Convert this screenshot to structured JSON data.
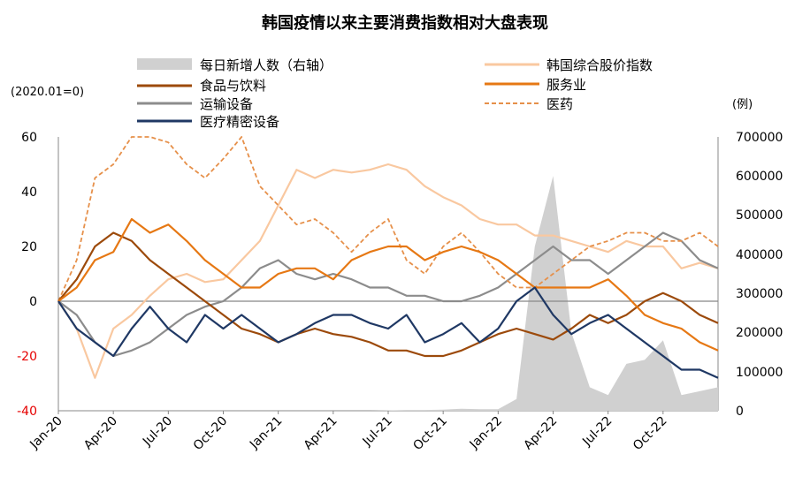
{
  "chart_data": {
    "type": "line",
    "title": "韩国疫情以来主要消费指数相对大盘表现",
    "left_unit": "(2020.01=0)",
    "right_unit": "(例)",
    "x_ticks": [
      "Jan-20",
      "Apr-20",
      "Jul-20",
      "Oct-20",
      "Jan-21",
      "Apr-21",
      "Jul-21",
      "Oct-21",
      "Jan-22",
      "Apr-22",
      "Jul-22",
      "Oct-22"
    ],
    "y_left": {
      "min": -40,
      "max": 60,
      "ticks": [
        "60",
        "40",
        "20",
        "0",
        "-20",
        "-40"
      ]
    },
    "y_right": {
      "min": 0,
      "max": 700000,
      "ticks": [
        "700000",
        "600000",
        "500000",
        "400000",
        "300000",
        "200000",
        "100000",
        "0"
      ]
    },
    "legend": [
      {
        "id": "cases",
        "label": "每日新增人数（右轴）",
        "color": "#d0d0d0",
        "style": "area"
      },
      {
        "id": "kospi",
        "label": "韩国综合股价指数",
        "color": "#f9c8a0",
        "style": "solid"
      },
      {
        "id": "food",
        "label": "食品与饮料",
        "color": "#9c4a0b",
        "style": "solid"
      },
      {
        "id": "service",
        "label": "服务业",
        "color": "#e67814",
        "style": "solid"
      },
      {
        "id": "transport",
        "label": "运输设备",
        "color": "#8c8c8c",
        "style": "solid"
      },
      {
        "id": "medicine",
        "label": "医药",
        "color": "#e6904a",
        "style": "dashed"
      },
      {
        "id": "medical_device",
        "label": "医疗精密设备",
        "color": "#1f3864",
        "style": "solid"
      }
    ],
    "months": 36,
    "series": [
      {
        "id": "kospi",
        "values": [
          0,
          -10,
          -28,
          -10,
          -5,
          2,
          8,
          10,
          7,
          8,
          15,
          22,
          35,
          48,
          45,
          48,
          47,
          48,
          50,
          48,
          42,
          38,
          35,
          30,
          28,
          28,
          24,
          24,
          22,
          20,
          18,
          22,
          20,
          20,
          12,
          14,
          12
        ]
      },
      {
        "id": "food",
        "values": [
          0,
          8,
          20,
          25,
          22,
          15,
          10,
          5,
          0,
          -5,
          -10,
          -12,
          -15,
          -12,
          -10,
          -12,
          -13,
          -15,
          -18,
          -18,
          -20,
          -20,
          -18,
          -15,
          -12,
          -10,
          -12,
          -14,
          -10,
          -5,
          -8,
          -5,
          0,
          3,
          0,
          -5,
          -8
        ]
      },
      {
        "id": "service",
        "values": [
          0,
          5,
          15,
          18,
          30,
          25,
          28,
          22,
          15,
          10,
          5,
          5,
          10,
          12,
          12,
          8,
          15,
          18,
          20,
          20,
          15,
          18,
          20,
          18,
          15,
          10,
          5,
          5,
          5,
          5,
          8,
          2,
          -5,
          -8,
          -10,
          -15,
          -18
        ]
      },
      {
        "id": "transport",
        "values": [
          0,
          -5,
          -15,
          -20,
          -18,
          -15,
          -10,
          -5,
          -2,
          0,
          5,
          12,
          15,
          10,
          8,
          10,
          8,
          5,
          5,
          2,
          2,
          0,
          0,
          2,
          5,
          10,
          15,
          20,
          15,
          15,
          10,
          15,
          20,
          25,
          22,
          15,
          12
        ]
      },
      {
        "id": "medicine",
        "values": [
          0,
          15,
          45,
          50,
          60,
          62,
          58,
          50,
          45,
          52,
          60,
          42,
          35,
          28,
          30,
          25,
          18,
          25,
          30,
          15,
          10,
          20,
          25,
          18,
          10,
          5,
          5,
          10,
          15,
          20,
          22,
          25,
          25,
          22,
          22,
          25,
          20
        ]
      },
      {
        "id": "medical_device",
        "values": [
          0,
          -10,
          -15,
          -20,
          -10,
          -2,
          -10,
          -15,
          -5,
          -10,
          -5,
          -10,
          -15,
          -12,
          -8,
          -5,
          -5,
          -8,
          -10,
          -5,
          -15,
          -12,
          -8,
          -15,
          -10,
          0,
          5,
          -5,
          -12,
          -8,
          -5,
          -10,
          -15,
          -20,
          -25,
          -25,
          -28
        ]
      },
      {
        "id": "cases",
        "values": [
          0,
          0,
          0,
          0,
          0,
          0,
          0,
          0,
          0,
          0,
          0,
          0,
          0,
          0,
          0,
          0,
          0,
          0,
          1000,
          2000,
          2000,
          3000,
          5000,
          4000,
          4000,
          30000,
          420000,
          600000,
          200000,
          60000,
          40000,
          120000,
          130000,
          180000,
          40000,
          50000,
          60000
        ]
      }
    ]
  }
}
